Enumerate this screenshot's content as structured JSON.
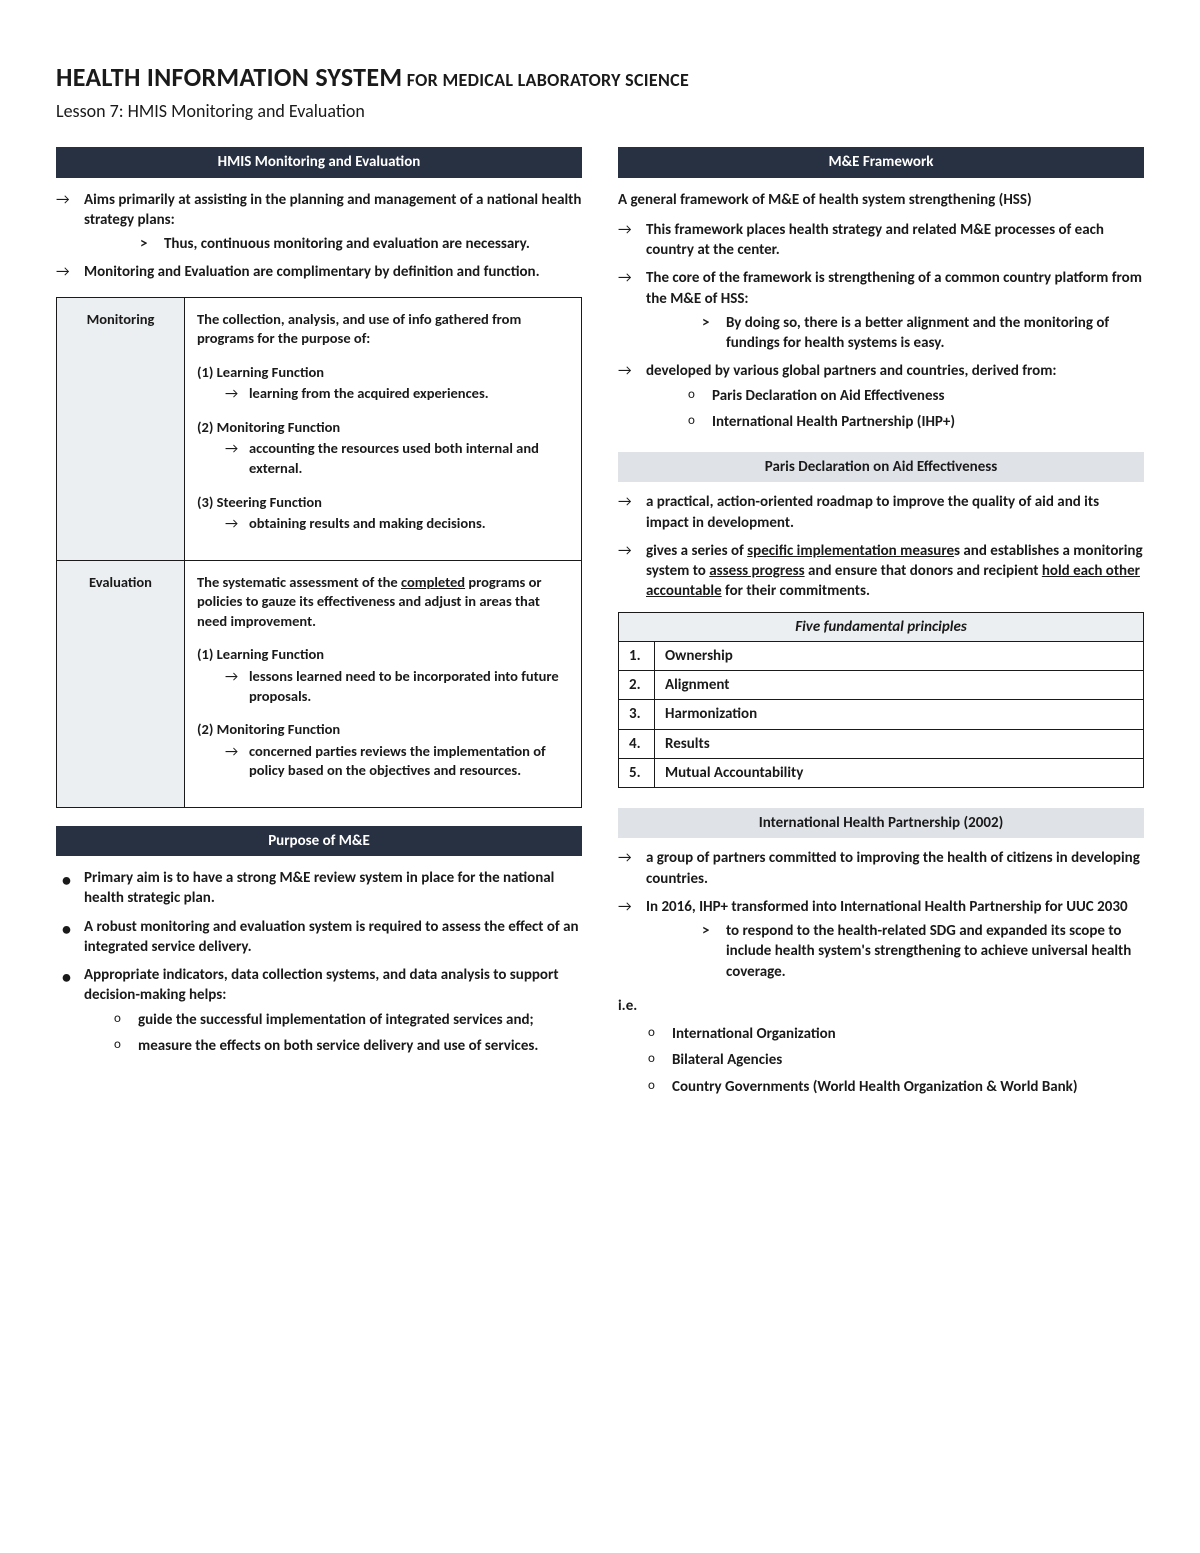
{
  "header": {
    "title_main": "HEALTH INFORMATION SYSTEM",
    "title_sub": " FOR MEDICAL LABORATORY SCIENCE",
    "subtitle": "Lesson 7: HMIS Monitoring and Evaluation"
  },
  "left": {
    "sec1_title": "HMIS Monitoring and Evaluation",
    "sec1_b1": "Aims primarily at assisting in the planning and management of a national health strategy plans:",
    "sec1_b1_sub": "Thus, continuous monitoring and evaluation are necessary.",
    "sec1_b2": "Monitoring and Evaluation are complimentary by definition and function.",
    "table": {
      "row1_label": "Monitoring",
      "row1_intro": "The collection, analysis, and use of info gathered from programs for the purpose of:",
      "row1_f1_t": "(1)  Learning Function",
      "row1_f1_d": "learning from the acquired experiences.",
      "row1_f2_t": "(2)  Monitoring Function",
      "row1_f2_d": "accounting the resources used both internal and external.",
      "row1_f3_t": "(3)  Steering Function",
      "row1_f3_d": "obtaining results and making decisions.",
      "row2_label": "Evaluation",
      "row2_intro_a": "The systematic assessment of the ",
      "row2_intro_u": "completed",
      "row2_intro_b": " programs or policies to gauze its effectiveness and adjust in areas that need improvement.",
      "row2_f1_t": "(1) Learning Function",
      "row2_f1_d": "lessons learned need to be incorporated into future proposals.",
      "row2_f2_t": "(2) Monitoring Function",
      "row2_f2_d": "concerned parties reviews the implementation of policy based on the objectives and resources."
    },
    "sec2_title": "Purpose of M&E",
    "sec2_b1": "Primary aim is to have a strong M&E review system in place for the national health strategic plan.",
    "sec2_b2": "A robust monitoring and evaluation system is required to assess the effect of an integrated service delivery.",
    "sec2_b3": "Appropriate indicators, data collection systems, and data analysis to support decision-making helps:",
    "sec2_b3_s1": "guide the successful implementation of integrated services and;",
    "sec2_b3_s2": "measure the effects on both service delivery and use of services."
  },
  "right": {
    "sec1_title": "M&E Framework",
    "sec1_intro": "A general framework of M&E of health system strengthening (HSS)",
    "sec1_b1": "This framework places health strategy and related M&E processes of each country at the center.",
    "sec1_b2": "The core of the framework is strengthening of a common country platform from the M&E of HSS:",
    "sec1_b2_s": "By doing so, there is a better alignment and the monitoring of fundings for health systems is easy.",
    "sec1_b3": "developed by various global partners and countries, derived from:",
    "sec1_b3_s1": "Paris Declaration on Aid Effectiveness",
    "sec1_b3_s2": "International Health Partnership (IHP+)",
    "sub1_title": "Paris Declaration on Aid Effectiveness",
    "sub1_b1": "a practical, action-oriented roadmap to improve the quality of aid and its impact in development.",
    "sub1_b2_a": "gives a series of ",
    "sub1_b2_u1": "specific implementation measure",
    "sub1_b2_b": "s and establishes a monitoring system to ",
    "sub1_b2_u2": "assess progress",
    "sub1_b2_c": " and ensure that donors and recipient ",
    "sub1_b2_u3": "hold each other accountable",
    "sub1_b2_d": " for their commitments.",
    "principles_title": "Five fundamental principles",
    "principles": [
      "Ownership",
      "Alignment",
      "Harmonization",
      "Results",
      "Mutual Accountability"
    ],
    "sub2_title": "International Health Partnership (2002)",
    "sub2_b1": "a group of partners committed to improving the health of citizens in developing countries.",
    "sub2_b2": "In 2016, IHP+ transformed into International Health Partnership for UUC 2030",
    "sub2_b2_s": "to respond to the health-related SDG and expanded its scope to include health system's strengthening to achieve universal health coverage.",
    "ie_label": "i.e.",
    "ie_items": [
      "International Organization",
      "Bilateral Agencies",
      "Country Governments (World Health Organization & World Bank)"
    ]
  }
}
